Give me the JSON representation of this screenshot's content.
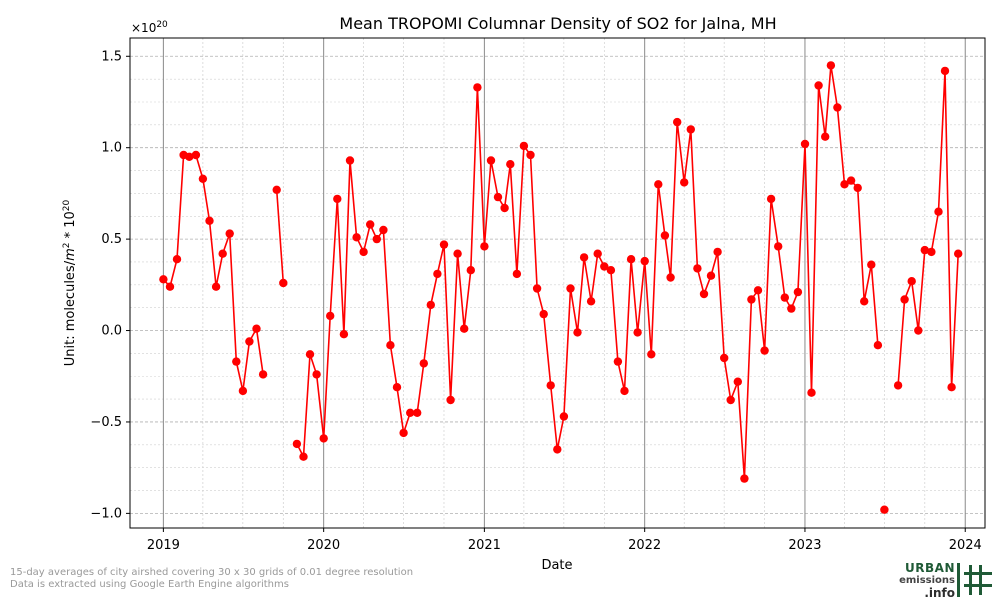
{
  "chart_data": {
    "type": "line",
    "title": "Mean TROPOMI Columnar Density of SO2 for Jalna, MH",
    "xlabel": "Date",
    "ylabel_prefix": "Unit: molecules/",
    "ylabel_m": "m",
    "ylabel_m_exp": "2",
    "ylabel_mid": " * 10",
    "ylabel_exp": "20",
    "offset_text_base": "×10",
    "offset_text_exp": "20",
    "ylim": [
      -1.08,
      1.6
    ],
    "xlim": [
      "2018-10-17",
      "2024-02-15"
    ],
    "yticks": [
      {
        "value": -1.0,
        "label": "−1.0"
      },
      {
        "value": -0.5,
        "label": "−0.5"
      },
      {
        "value": 0.0,
        "label": "0.0"
      },
      {
        "value": 0.5,
        "label": "0.5"
      },
      {
        "value": 1.0,
        "label": "1.0"
      },
      {
        "value": 1.5,
        "label": "1.5"
      }
    ],
    "xticks": [
      {
        "date": "2019-01-01",
        "label": "2019"
      },
      {
        "date": "2020-01-01",
        "label": "2020"
      },
      {
        "date": "2021-01-01",
        "label": "2021"
      },
      {
        "date": "2022-01-01",
        "label": "2022"
      },
      {
        "date": "2023-01-01",
        "label": "2023"
      },
      {
        "date": "2024-01-01",
        "label": "2024"
      }
    ],
    "grid": true,
    "color": "#ff0000",
    "segments": [
      {
        "dates": [
          "2019-01-01",
          "2019-01-16",
          "2019-02-01",
          "2019-02-16",
          "2019-03-01",
          "2019-03-16",
          "2019-04-01",
          "2019-04-16",
          "2019-05-01",
          "2019-05-16",
          "2019-06-01",
          "2019-06-16",
          "2019-07-01",
          "2019-07-16",
          "2019-08-01",
          "2019-08-16"
        ],
        "values": [
          0.28,
          0.24,
          0.39,
          0.96,
          0.95,
          0.96,
          0.83,
          0.6,
          0.24,
          0.42,
          0.53,
          -0.17,
          -0.33,
          -0.06,
          0.01,
          -0.24
        ]
      },
      {
        "dates": [
          "2019-09-16",
          "2019-10-01"
        ],
        "values": [
          0.77,
          0.26
        ]
      },
      {
        "dates": [
          "2019-11-01",
          "2019-11-16",
          "2019-12-01",
          "2019-12-16",
          "2020-01-01",
          "2020-01-16",
          "2020-02-01",
          "2020-02-16",
          "2020-03-01",
          "2020-03-16",
          "2020-04-01",
          "2020-04-16",
          "2020-05-01",
          "2020-05-16",
          "2020-06-01",
          "2020-06-16",
          "2020-07-01",
          "2020-07-16",
          "2020-08-01",
          "2020-08-16",
          "2020-09-01",
          "2020-09-16",
          "2020-10-01",
          "2020-10-16",
          "2020-11-01",
          "2020-11-16",
          "2020-12-01",
          "2020-12-16",
          "2021-01-01",
          "2021-01-16",
          "2021-02-01",
          "2021-02-16",
          "2021-03-01",
          "2021-03-16",
          "2021-04-01",
          "2021-04-16",
          "2021-05-01",
          "2021-05-16",
          "2021-06-01",
          "2021-06-16",
          "2021-07-01",
          "2021-07-16",
          "2021-08-01",
          "2021-08-16",
          "2021-09-01",
          "2021-09-16",
          "2021-10-01",
          "2021-10-16",
          "2021-11-01",
          "2021-11-16",
          "2021-12-01",
          "2021-12-16",
          "2022-01-01",
          "2022-01-16",
          "2022-02-01",
          "2022-02-16",
          "2022-03-01",
          "2022-03-16",
          "2022-04-01",
          "2022-04-16",
          "2022-05-01",
          "2022-05-16",
          "2022-06-01",
          "2022-06-16",
          "2022-07-01",
          "2022-07-16",
          "2022-08-01",
          "2022-08-16",
          "2022-09-01",
          "2022-09-16",
          "2022-10-01",
          "2022-10-16",
          "2022-11-01",
          "2022-11-16",
          "2022-12-01",
          "2022-12-16",
          "2023-01-01",
          "2023-01-16",
          "2023-02-01",
          "2023-02-16",
          "2023-03-01",
          "2023-03-16",
          "2023-04-01",
          "2023-04-16",
          "2023-05-01",
          "2023-05-16",
          "2023-06-01",
          "2023-06-16"
        ],
        "values": [
          -0.62,
          -0.69,
          -0.13,
          -0.24,
          -0.59,
          0.08,
          0.72,
          -0.02,
          0.93,
          0.51,
          0.43,
          0.58,
          0.5,
          0.55,
          -0.08,
          -0.31,
          -0.56,
          -0.45,
          -0.45,
          -0.18,
          0.14,
          0.31,
          0.47,
          -0.38,
          0.42,
          0.01,
          0.33,
          1.33,
          0.46,
          0.93,
          0.73,
          0.67,
          0.91,
          0.31,
          1.01,
          0.96,
          0.23,
          0.09,
          -0.3,
          -0.65,
          -0.47,
          0.23,
          -0.01,
          0.4,
          0.16,
          0.42,
          0.35,
          0.33,
          -0.17,
          -0.33,
          0.39,
          -0.01,
          0.38,
          -0.13,
          0.8,
          0.52,
          0.29,
          1.14,
          0.81,
          1.1,
          0.34,
          0.2,
          0.3,
          0.43,
          -0.15,
          -0.38,
          -0.28,
          -0.81,
          0.17,
          0.22,
          -0.11,
          0.72,
          0.46,
          0.18,
          0.12,
          0.21,
          1.02,
          -0.34,
          1.34,
          1.06,
          1.45,
          1.22,
          0.8,
          0.82,
          0.78,
          0.16,
          0.36,
          -0.08
        ]
      },
      {
        "dates": [
          "2023-07-01"
        ],
        "values": [
          -0.98
        ]
      },
      {
        "dates": [
          "2023-08-01",
          "2023-08-16",
          "2023-09-01",
          "2023-09-16",
          "2023-10-01",
          "2023-10-16",
          "2023-11-01",
          "2023-11-16",
          "2023-12-01",
          "2023-12-16"
        ],
        "values": [
          -0.3,
          0.17,
          0.27,
          0.0,
          0.44,
          0.43,
          0.65,
          1.42,
          -0.31,
          0.42
        ]
      }
    ]
  },
  "footnote": {
    "line1": "15-day averages of city airshed covering 30 x 30 grids of 0.01 degree resolution",
    "line2": "Data is extracted using Google Earth Engine algorithms"
  },
  "logo": {
    "word1": "URBAN",
    "word2": "emissions",
    "word3": ".info",
    "color": "#1f5a36"
  }
}
